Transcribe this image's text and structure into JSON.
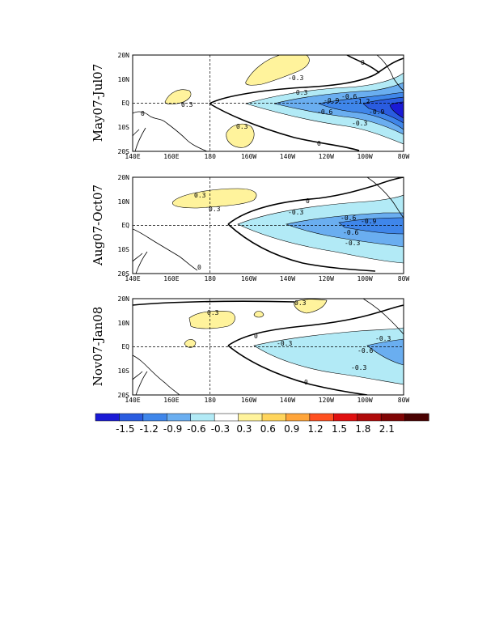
{
  "panels": [
    {
      "label": "May07-Jul07",
      "contour_labels": [
        "0",
        "0",
        "-0.3",
        "-0.3",
        "-0.3",
        "0.3",
        "-0.6",
        "-0.6",
        "-0.9",
        "-1.2",
        "-0.6",
        "-0.9",
        "-0.3"
      ]
    },
    {
      "label": "Aug07-Oct07",
      "contour_labels": [
        "0",
        "0",
        "0.3",
        "0.3",
        "-0.3",
        "-0.6",
        "-0.9",
        "-0.6",
        "-0.3"
      ]
    },
    {
      "label": "Nov07-Jan08",
      "contour_labels": [
        "0",
        "0",
        "0.3",
        "0.3",
        "-0.3",
        "-0.3",
        "-0.6",
        "-0.3"
      ]
    }
  ],
  "lon_ticks": [
    "140E",
    "160E",
    "180",
    "160W",
    "140W",
    "120W",
    "100W",
    "80W"
  ],
  "lat_ticks": [
    "20N",
    "10N",
    "EQ",
    "10S",
    "20S"
  ],
  "colorbar": {
    "tick_labels": [
      "-1.5",
      "-1.2",
      "-0.9",
      "-0.6",
      "-0.3",
      "0.3",
      "0.6",
      "0.9",
      "1.2",
      "1.5",
      "1.8",
      "2.1"
    ],
    "colors": [
      "#1a1ad6",
      "#2a5ce0",
      "#3f86ea",
      "#6aaef0",
      "#b2eaf6",
      "#ffffff",
      "#fff39c",
      "#ffd55c",
      "#ffa53a",
      "#ff5020",
      "#e01010",
      "#b00a0a",
      "#800505",
      "#4a0202"
    ]
  },
  "fill_colors": {
    "pos_03": "#fff39c",
    "neg_03": "#b2eaf6",
    "neg_06": "#6aaef0",
    "neg_09": "#3f86ea",
    "neg_12": "#2a5ce0",
    "neg_15": "#1a1ad6"
  }
}
